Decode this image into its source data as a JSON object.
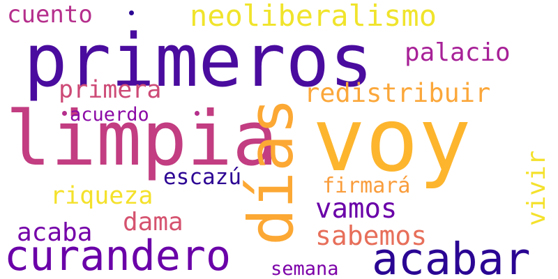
{
  "words": {
    "voy": {
      "text": "voy",
      "color": "#fdb52e"
    },
    "primeros": {
      "text": "primeros",
      "color": "#4a0c9e"
    },
    "limpia": {
      "text": "limpia",
      "color": "#c23d81"
    },
    "dias": {
      "text": "días",
      "color": "#fca834"
    },
    "curandero": {
      "text": "curandero",
      "color": "#6a00a8"
    },
    "acabar": {
      "text": "acabar",
      "color": "#2a0593"
    },
    "neoliberalismo": {
      "text": "neoliberalismo",
      "color": "#f0e42c"
    },
    "redistribuir": {
      "text": "redistribuir",
      "color": "#fba73a"
    },
    "vamos": {
      "text": "vamos",
      "color": "#6a00a8"
    },
    "palacio": {
      "text": "palacio",
      "color": "#a72197"
    },
    "primera": {
      "text": "primera",
      "color": "#cd4a76"
    },
    "cuento": {
      "text": "cuento",
      "color": "#b52f8c"
    },
    "acuerdo": {
      "text": "acuerdo",
      "color": "#8b0aa5"
    },
    "riqueza": {
      "text": "riqueza",
      "color": "#f4e12b"
    },
    "dama": {
      "text": "dama",
      "color": "#d5536f"
    },
    "sabemos": {
      "text": "sabemos",
      "color": "#e76f5a"
    },
    "acaba": {
      "text": "acaba",
      "color": "#7401a8"
    },
    "escazu": {
      "text": "escazú",
      "color": "#2d0594"
    },
    "firmara": {
      "text": "firmará",
      "color": "#f99d3c"
    },
    "vivir": {
      "text": "vivir",
      "color": "#f4e12b"
    },
    "semana": {
      "text": "semana",
      "color": "#7c02a8"
    }
  },
  "dot_colors": {
    "cuento": "#2a0593",
    "acuerdo_left": "#b52f8c",
    "acuerdo_right": "#b52f8c"
  }
}
